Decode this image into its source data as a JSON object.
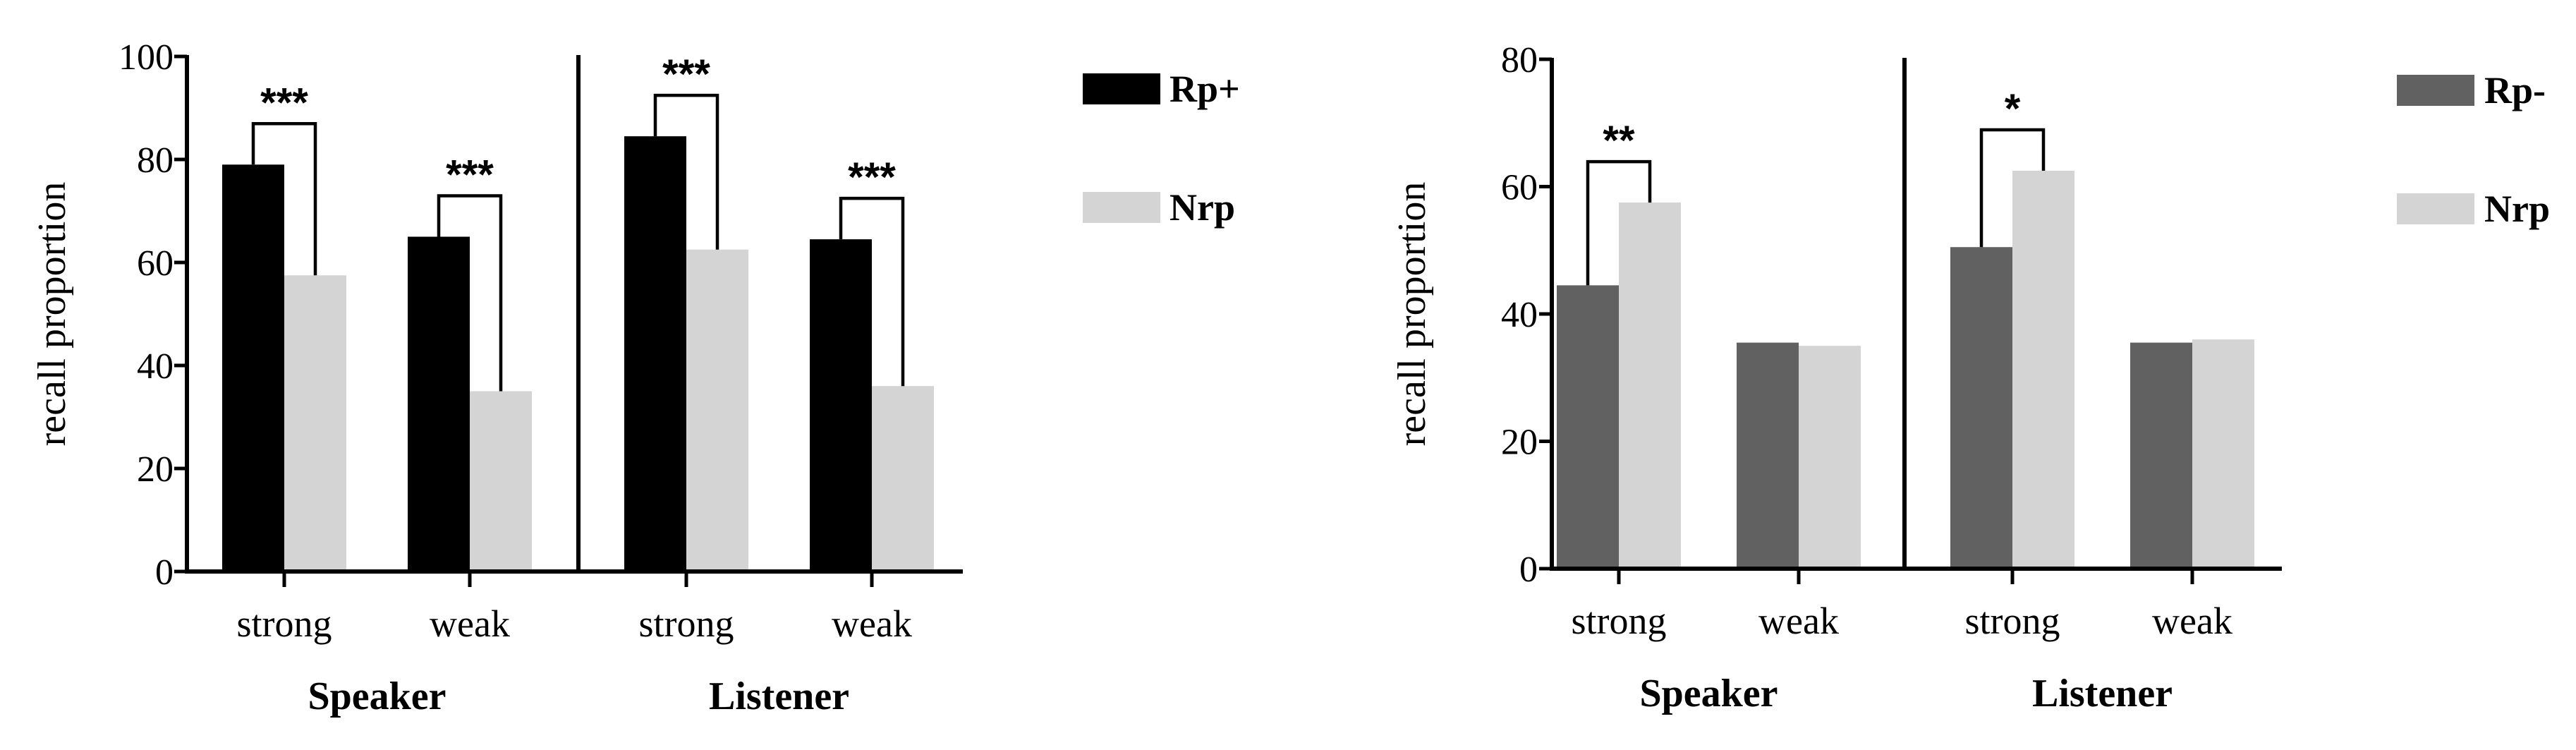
{
  "chart_data": [
    {
      "type": "bar",
      "ylabel": "recall proportion",
      "ylim": [
        0,
        100
      ],
      "yticks": [
        "0",
        "20",
        "40",
        "60",
        "80",
        "100"
      ],
      "groups": [
        {
          "name": "Speaker",
          "categories": [
            "strong",
            "weak"
          ]
        },
        {
          "name": "Listener",
          "categories": [
            "strong",
            "weak"
          ]
        }
      ],
      "series": [
        {
          "name": "Rp+",
          "color": "#000000",
          "values": [
            79,
            65,
            84.5,
            64.5
          ]
        },
        {
          "name": "Nrp",
          "color": "#d4d4d4",
          "values": [
            57.5,
            35,
            62.5,
            36
          ]
        }
      ],
      "significance": [
        "***",
        "***",
        "***",
        "***"
      ],
      "legend": [
        "Rp+",
        "Nrp"
      ]
    },
    {
      "type": "bar",
      "ylabel": "recall proportion",
      "ylim": [
        0,
        80
      ],
      "yticks": [
        "0",
        "20",
        "40",
        "60",
        "80"
      ],
      "groups": [
        {
          "name": "Speaker",
          "categories": [
            "strong",
            "weak"
          ]
        },
        {
          "name": "Listener",
          "categories": [
            "strong",
            "weak"
          ]
        }
      ],
      "series": [
        {
          "name": "Rp-",
          "color": "#616161",
          "values": [
            44.5,
            35.5,
            50.5,
            35.5
          ]
        },
        {
          "name": "Nrp",
          "color": "#d4d4d4",
          "values": [
            57.5,
            35,
            62.5,
            36
          ]
        }
      ],
      "significance": [
        "**",
        "",
        "*",
        ""
      ],
      "legend": [
        "Rp-",
        "Nrp"
      ]
    }
  ]
}
